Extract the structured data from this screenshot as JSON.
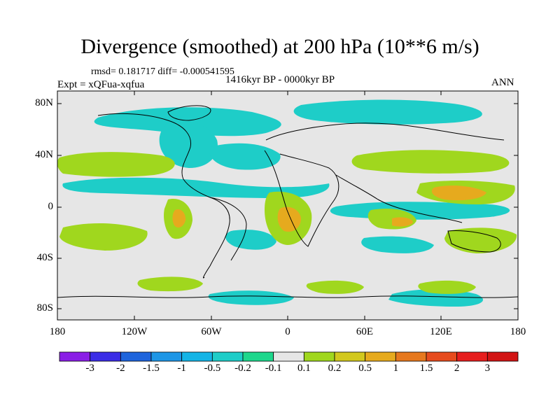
{
  "title": "Divergence (smoothed) at 200 hPa (10**6 m/s)",
  "stats_text": "rmsd= 0.181717 diff= -0.000541595",
  "period": "1416kyr BP - 0000kyr BP",
  "experiment": "Expt = xQFua-xqfua",
  "season": "ANN",
  "lat_labels": [
    "80N",
    "40N",
    "0",
    "40S",
    "80S"
  ],
  "lon_labels": [
    "180",
    "120W",
    "60W",
    "0",
    "60E",
    "120E",
    "180"
  ],
  "colorbar": {
    "labels": [
      "-3",
      "-2",
      "-1.5",
      "-1",
      "-0.5",
      "-0.2",
      "-0.1",
      "0.1",
      "0.2",
      "0.5",
      "1",
      "1.5",
      "2",
      "3"
    ],
    "colors": [
      "#8a1ee6",
      "#3b2de6",
      "#1e64dc",
      "#1e96e6",
      "#14b4e6",
      "#1ecdc8",
      "#1ed78c",
      "#e6e6e6",
      "#a0d71e",
      "#d2c81e",
      "#e6aa1e",
      "#e6781e",
      "#e64b1e",
      "#e61e1e",
      "#d21414"
    ]
  },
  "map_colors": {
    "background": "#e6e6e6",
    "land_line": "#000000",
    "neg_light": "#1ecdc8",
    "neg_mid": "#14b4e6",
    "pos_light": "#a0d71e",
    "pos_mid": "#d2c81e",
    "pos_strong": "#e6aa1e",
    "pos_max": "#e6781e"
  }
}
